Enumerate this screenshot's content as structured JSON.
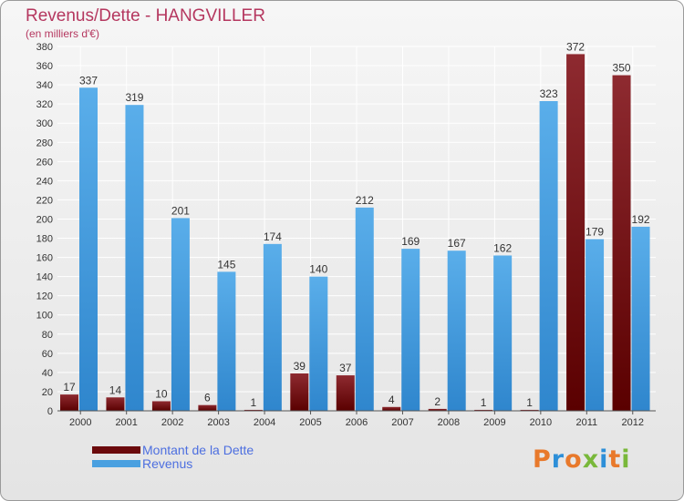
{
  "header": {
    "title": "Revenus/Dette - HANGVILLER",
    "subtitle": "(en milliers d'€)"
  },
  "legend": {
    "debt_label": "Montant de la Dette",
    "revenue_label": "Revenus"
  },
  "brand": {
    "logo_text": "Proxiti",
    "letter_colors": [
      "#e8792b",
      "#2d8fd8",
      "#e8792b",
      "#79b83a",
      "#2d8fd8",
      "#e8792b",
      "#79b83a"
    ]
  },
  "colors": {
    "debt": "#7b1416",
    "revenue": "#4aa0e0",
    "title": "#b5375f",
    "legend_text": "#4d6fe0"
  },
  "chart_data": {
    "type": "bar",
    "title": "Revenus/Dette - HANGVILLER",
    "subtitle": "(en milliers d'€)",
    "categories": [
      "2000",
      "2001",
      "2002",
      "2003",
      "2004",
      "2005",
      "2006",
      "2007",
      "2008",
      "2009",
      "2010",
      "2011",
      "2012"
    ],
    "series": [
      {
        "name": "Montant de la Dette",
        "values": [
          17,
          14,
          10,
          6,
          1,
          39,
          37,
          4,
          2,
          1,
          1,
          372,
          350
        ]
      },
      {
        "name": "Revenus",
        "values": [
          337,
          319,
          201,
          145,
          174,
          140,
          212,
          169,
          167,
          162,
          323,
          179,
          192
        ]
      }
    ],
    "ylim": [
      0,
      380
    ],
    "ytick_step": 20,
    "grid": true,
    "legend_position": "bottom-left"
  }
}
